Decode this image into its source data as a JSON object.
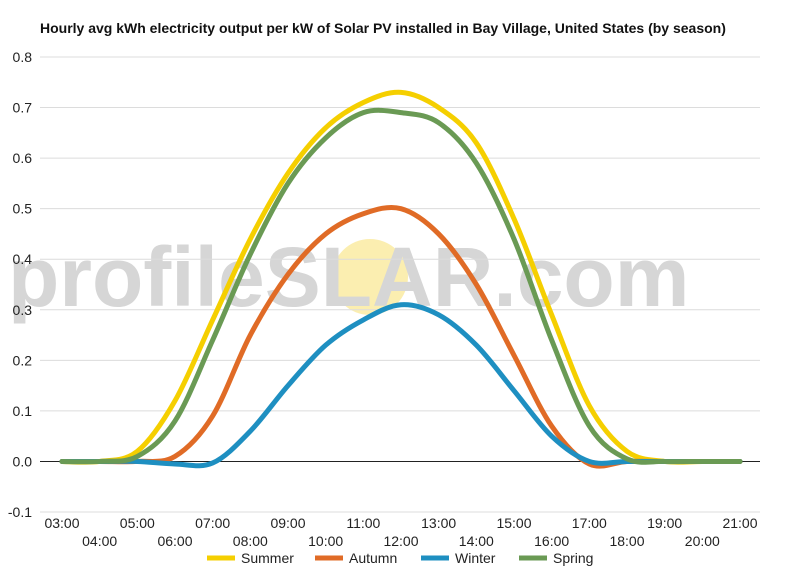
{
  "chart_data": {
    "type": "line",
    "title": "Hourly avg kWh electricity output per kW of Solar PV installed in Bay Village, United States (by season)",
    "xlabel": "",
    "ylabel": "",
    "x": [
      "03:00",
      "04:00",
      "05:00",
      "06:00",
      "07:00",
      "08:00",
      "09:00",
      "10:00",
      "11:00",
      "12:00",
      "13:00",
      "14:00",
      "15:00",
      "16:00",
      "17:00",
      "18:00",
      "19:00",
      "20:00",
      "21:00"
    ],
    "ylim": [
      -0.1,
      0.8
    ],
    "yticks": [
      "-0.1",
      "0.0",
      "0.1",
      "0.2",
      "0.3",
      "0.4",
      "0.5",
      "0.6",
      "0.7",
      "0.8"
    ],
    "grid": true,
    "legend_position": "bottom",
    "series": [
      {
        "name": "Summer",
        "color": "#f5cf00",
        "values": [
          0,
          0,
          0.02,
          0.12,
          0.28,
          0.44,
          0.57,
          0.66,
          0.71,
          0.73,
          0.7,
          0.63,
          0.48,
          0.29,
          0.11,
          0.02,
          0,
          0,
          0
        ]
      },
      {
        "name": "Autumn",
        "color": "#e06b26",
        "values": [
          0,
          0,
          0,
          0.01,
          0.09,
          0.25,
          0.37,
          0.45,
          0.49,
          0.5,
          0.45,
          0.35,
          0.21,
          0.07,
          -0.005,
          0,
          0,
          0,
          0
        ]
      },
      {
        "name": "Winter",
        "color": "#1e8fc1",
        "values": [
          0,
          0,
          0,
          -0.005,
          -0.003,
          0.06,
          0.15,
          0.23,
          0.28,
          0.31,
          0.29,
          0.23,
          0.14,
          0.05,
          0,
          0,
          0,
          0,
          0
        ]
      },
      {
        "name": "Spring",
        "color": "#6a9a54",
        "values": [
          0,
          0,
          0.01,
          0.08,
          0.24,
          0.41,
          0.55,
          0.64,
          0.69,
          0.69,
          0.67,
          0.59,
          0.44,
          0.24,
          0.07,
          0.005,
          0,
          0,
          0
        ]
      }
    ]
  },
  "watermark": {
    "left": "profile",
    "mid": "S",
    "right": "LAR.com",
    "sun_color": "#fbeeb0"
  },
  "legend": [
    {
      "label": "Summer",
      "color": "#f5cf00"
    },
    {
      "label": "Autumn",
      "color": "#e06b26"
    },
    {
      "label": "Winter",
      "color": "#1e8fc1"
    },
    {
      "label": "Spring",
      "color": "#6a9a54"
    }
  ]
}
